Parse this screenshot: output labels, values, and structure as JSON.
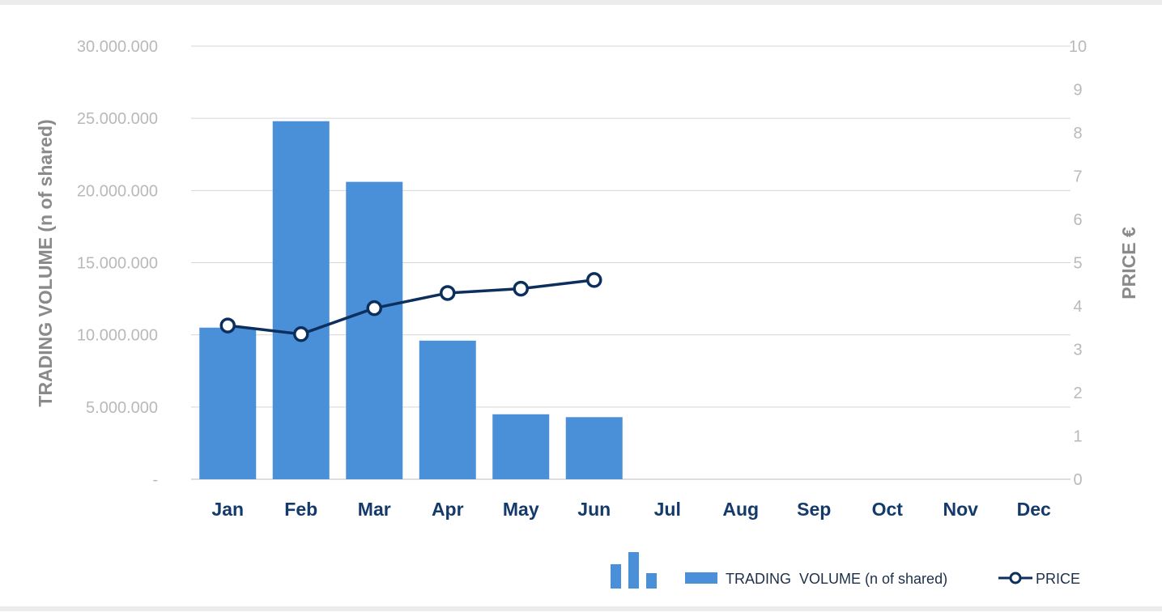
{
  "chart_data": {
    "type": "bar",
    "categories": [
      "Jan",
      "Feb",
      "Mar",
      "Apr",
      "May",
      "Jun",
      "Jul",
      "Aug",
      "Sep",
      "Oct",
      "Nov",
      "Dec"
    ],
    "series": [
      {
        "name": "TRADING  VOLUME (n of shared)",
        "type": "bar",
        "axis": "left",
        "color": "#4a90d9",
        "values": [
          10500000,
          24800000,
          20600000,
          9600000,
          4500000,
          4300000,
          null,
          null,
          null,
          null,
          null,
          null
        ]
      },
      {
        "name": "PRICE",
        "type": "line",
        "axis": "right",
        "color": "#0d2f5e",
        "values": [
          3.55,
          3.35,
          3.95,
          4.3,
          4.4,
          4.6,
          null,
          null,
          null,
          null,
          null,
          null
        ]
      }
    ],
    "y_left": {
      "label": "TRADING  VOLUME (n of shared)",
      "ylim": [
        0,
        30000000
      ],
      "ticks": [
        0,
        5000000,
        10000000,
        15000000,
        20000000,
        25000000,
        30000000
      ],
      "tick_labels": [
        "-",
        "5.000.000",
        "10.000.000",
        "15.000.000",
        "20.000.000",
        "25.000.000",
        "30.000.000"
      ]
    },
    "y_right": {
      "label": "PRICE €",
      "ylim": [
        0,
        10
      ],
      "ticks": [
        0,
        1,
        2,
        3,
        4,
        5,
        6,
        7,
        8,
        9,
        10
      ],
      "tick_labels": [
        "0",
        "1",
        "2",
        "3",
        "4",
        "5",
        "6",
        "7",
        "8",
        "9",
        "10"
      ]
    },
    "grid": true,
    "legend": {
      "placement": "bottom-right",
      "icon": "bar-chart-icon"
    }
  }
}
